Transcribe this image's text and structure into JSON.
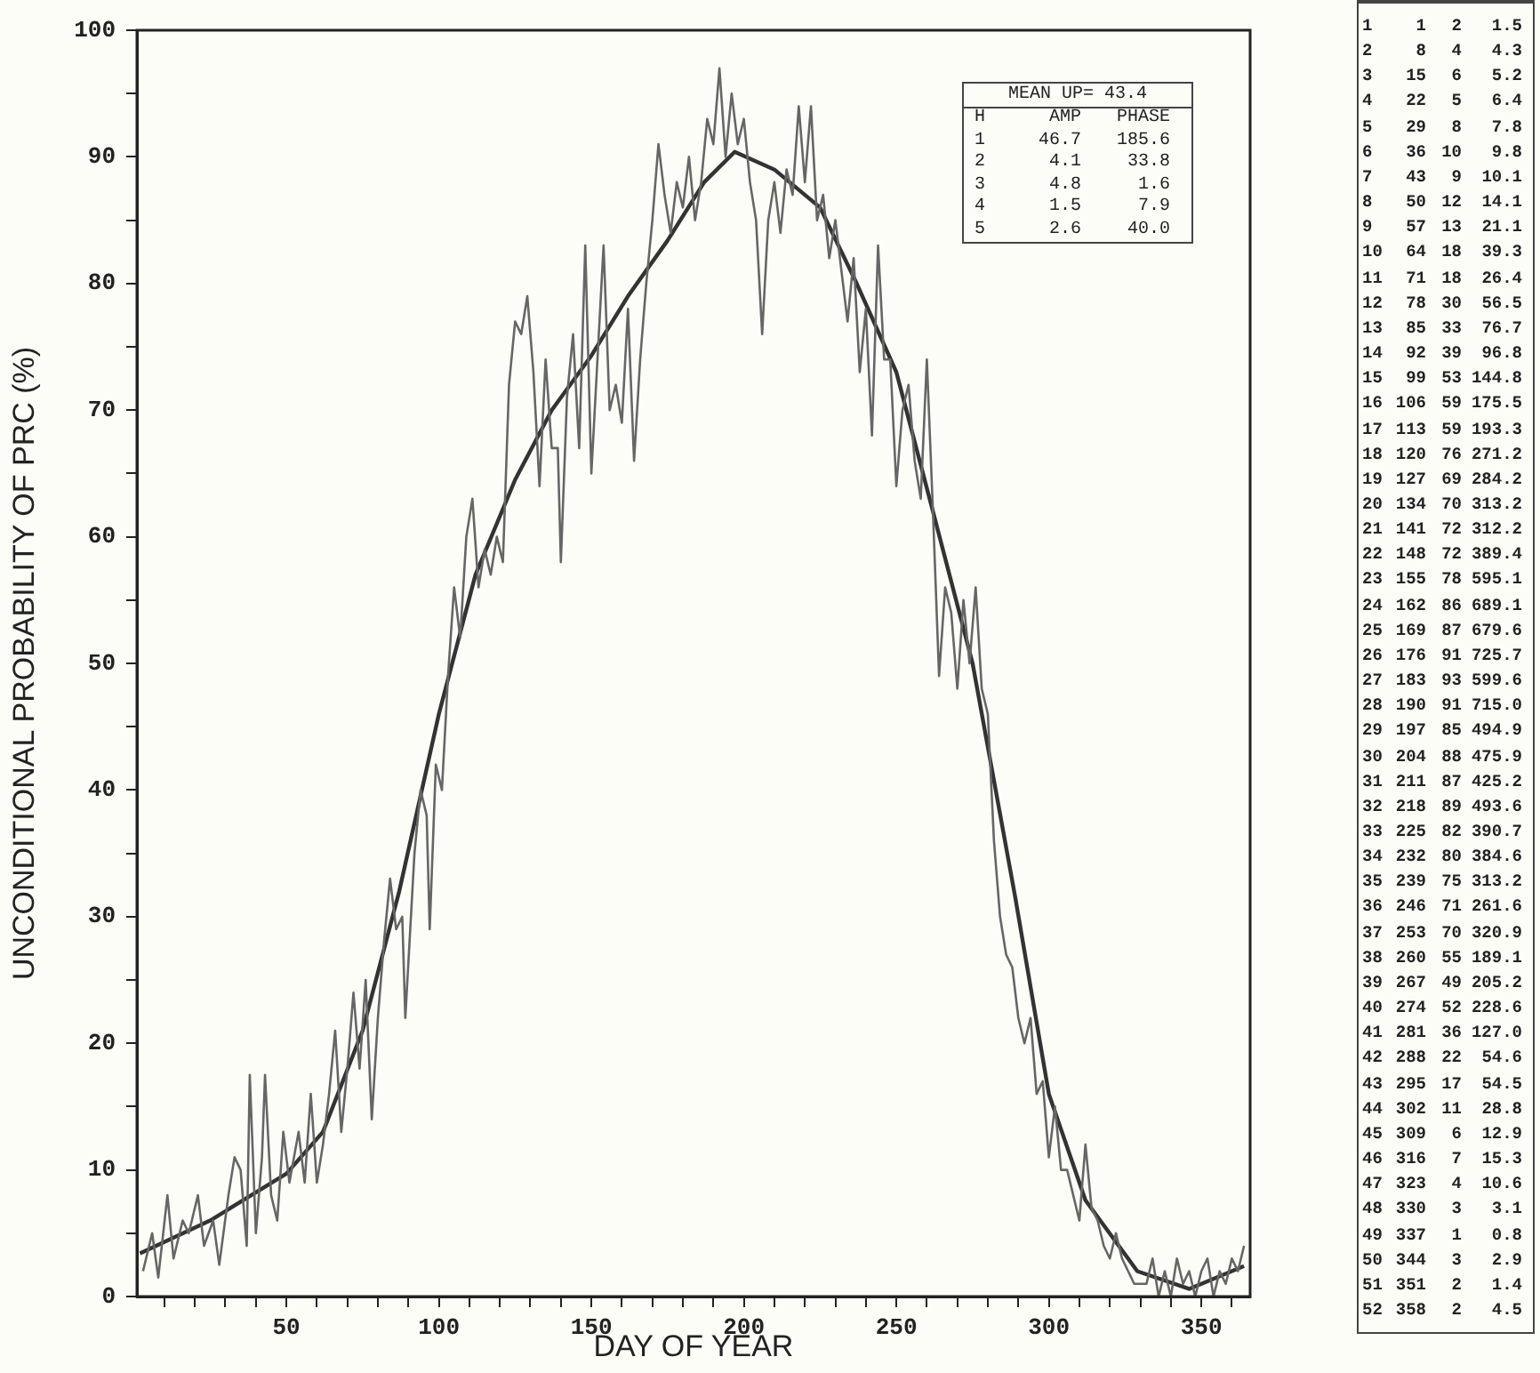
{
  "chart_data": [
    {
      "type": "line",
      "xlabel": "DAY OF YEAR",
      "ylabel": "UNCONDITIONAL PROBABILITY OF PRC (%)",
      "xlim": [
        1,
        366
      ],
      "ylim": [
        0,
        100
      ],
      "xticks": [
        {
          "value": 10,
          "label": null
        },
        {
          "value": 20,
          "label": null
        },
        {
          "value": 30,
          "label": null
        },
        {
          "value": 40,
          "label": null
        },
        50,
        {
          "value": 60,
          "label": null
        },
        {
          "value": 70,
          "label": null
        },
        {
          "value": 80,
          "label": null
        },
        {
          "value": 90,
          "label": null
        },
        100,
        {
          "value": 110,
          "label": null
        },
        {
          "value": 120,
          "label": null
        },
        {
          "value": 130,
          "label": null
        },
        {
          "value": 140,
          "label": null
        },
        150,
        {
          "value": 160,
          "label": null
        },
        {
          "value": 170,
          "label": null
        },
        {
          "value": 180,
          "label": null
        },
        {
          "value": 190,
          "label": null
        },
        200,
        {
          "value": 210,
          "label": null
        },
        {
          "value": 220,
          "label": null
        },
        {
          "value": 230,
          "label": null
        },
        {
          "value": 240,
          "label": null
        },
        250,
        {
          "value": 260,
          "label": null
        },
        {
          "value": 270,
          "label": null
        },
        {
          "value": 280,
          "label": null
        },
        {
          "value": 290,
          "label": null
        },
        300,
        {
          "value": 310,
          "label": null
        },
        {
          "value": 320,
          "label": null
        },
        {
          "value": 330,
          "label": null
        },
        {
          "value": 340,
          "label": null
        },
        350,
        {
          "value": 360,
          "label": null
        }
      ],
      "yticks": [
        0,
        {
          "value": 5,
          "label": null
        },
        10,
        {
          "value": 15,
          "label": null
        },
        20,
        {
          "value": 25,
          "label": null
        },
        30,
        {
          "value": 35,
          "label": null
        },
        40,
        {
          "value": 45,
          "label": null
        },
        50,
        {
          "value": 55,
          "label": null
        },
        60,
        {
          "value": 65,
          "label": null
        },
        70,
        {
          "value": 75,
          "label": null
        },
        80,
        {
          "value": 85,
          "label": null
        },
        90,
        {
          "value": 95,
          "label": null
        },
        100
      ],
      "grid": false,
      "legend": false,
      "marker": "none",
      "line_style": "solid",
      "series": [
        {
          "color": "#666666",
          "x": [
            3,
            6,
            8,
            11,
            13,
            16,
            18,
            21,
            23,
            26,
            28,
            31,
            33,
            35,
            37,
            38,
            40,
            42,
            43,
            45,
            47,
            49,
            51,
            54,
            56,
            58,
            60,
            62,
            64,
            66,
            68,
            70,
            72,
            74,
            76,
            78,
            80,
            82,
            84,
            86,
            88,
            89,
            92,
            94,
            96,
            97,
            99,
            101,
            103,
            105,
            107,
            109,
            111,
            113,
            115,
            117,
            119,
            121,
            123,
            125,
            127,
            129,
            131,
            133,
            135,
            137,
            139,
            140,
            142,
            144,
            146,
            148,
            150,
            152,
            154,
            156,
            158,
            160,
            162,
            164,
            166,
            168,
            170,
            172,
            174,
            176,
            178,
            180,
            182,
            184,
            186,
            188,
            190,
            192,
            194,
            196,
            198,
            200,
            202,
            204,
            206,
            208,
            210,
            212,
            214,
            216,
            218,
            220,
            222,
            224,
            226,
            228,
            230,
            232,
            234,
            236,
            238,
            240,
            242,
            244,
            246,
            248,
            250,
            252,
            254,
            256,
            258,
            260,
            262,
            264,
            266,
            268,
            270,
            272,
            274,
            276,
            278,
            280,
            282,
            284,
            286,
            288,
            290,
            292,
            294,
            296,
            298,
            300,
            302,
            304,
            306,
            308,
            310,
            312,
            314,
            316,
            318,
            320,
            322,
            324,
            326,
            328,
            330,
            332,
            334,
            336,
            338,
            340,
            342,
            344,
            346,
            348,
            350,
            352,
            354,
            356,
            358,
            360,
            362,
            364
          ],
          "values": [
            2,
            5,
            1.5,
            8,
            3,
            6,
            5,
            8,
            4,
            6,
            2.5,
            8,
            11,
            10,
            4,
            17.5,
            5,
            11,
            17.5,
            8,
            6,
            13,
            9,
            13,
            9,
            16,
            9,
            12,
            16,
            21,
            13,
            18,
            24,
            18,
            25,
            14,
            22,
            28,
            33,
            29,
            30,
            22,
            35,
            40,
            38,
            29,
            42,
            40,
            49,
            56,
            52,
            60,
            63,
            56,
            59,
            57,
            60,
            58,
            72,
            77,
            76,
            79,
            73,
            64,
            74,
            67,
            67,
            58,
            71,
            76,
            67,
            83,
            65,
            74,
            83,
            70,
            72,
            69,
            78,
            66,
            74,
            80,
            85,
            91,
            87,
            84,
            88,
            86,
            90,
            85,
            88,
            93,
            91,
            97,
            90,
            95,
            91,
            93,
            88,
            85,
            76,
            85,
            88,
            84,
            89,
            87,
            94,
            88,
            94,
            85,
            87,
            82,
            85,
            81,
            77,
            82,
            73,
            78,
            68,
            83,
            74,
            74,
            64,
            70,
            72,
            66,
            63,
            74,
            62,
            49,
            56,
            54,
            48,
            55,
            50,
            56,
            48,
            46,
            36,
            30,
            27,
            26,
            22,
            20,
            22,
            16,
            17,
            11,
            15,
            10,
            10,
            8,
            6,
            12,
            7,
            6,
            4,
            3,
            5,
            3,
            2,
            1,
            1,
            1,
            3,
            0,
            2,
            0,
            3,
            1,
            2,
            0,
            2,
            3,
            0,
            2,
            1,
            3,
            2,
            4
          ]
        },
        {
          "color": "#333333",
          "x": [
            2,
            25,
            50,
            62,
            75,
            87,
            100,
            112,
            125,
            137,
            150,
            162,
            175,
            187,
            197,
            210,
            225,
            237,
            250,
            262,
            275,
            289,
            300,
            312,
            329,
            346,
            364
          ],
          "values": [
            3.4,
            6,
            9.7,
            13,
            21,
            32,
            46,
            57,
            64.5,
            70,
            74.3,
            79,
            83.4,
            88,
            90.4,
            89,
            86,
            80,
            73,
            62,
            50,
            31.5,
            16,
            7.6,
            2,
            0.6,
            2.4
          ]
        }
      ],
      "annotations": [
        "MEAN UP= 43.4",
        "H AMP PHASE",
        "1 46.7 185.6",
        "2 4.1 33.8",
        "3 4.8 1.6",
        "4 1.5 7.9",
        "5 2.6 40.0"
      ]
    },
    {
      "type": "other",
      "annotations": [
        "1 1 2 1.5",
        "2 8 4 4.3",
        "3 15 6 5.2",
        "4 22 5 6.4",
        "5 29 8 7.8",
        "6 36 10 9.8",
        "7 43 9 10.1",
        "8 50 12 14.1",
        "9 57 13 21.1",
        "10 64 18 39.3",
        "11 71 18 26.4",
        "12 78 30 56.5",
        "13 85 33 76.7",
        "14 92 39 96.8",
        "15 99 53 144.8",
        "16 106 59 175.5",
        "17 113 59 193.3",
        "18 120 76 271.2",
        "19 127 69 284.2",
        "20 134 70 313.2",
        "21 141 72 312.2",
        "22 148 72 389.4",
        "23 155 78 595.1",
        "24 162 86 689.1",
        "25 169 87 679.6",
        "26 176 91 725.7",
        "27 183 93 599.6",
        "28 190 91 715.0",
        "29 197 85 494.9",
        "30 204 88 475.9",
        "31 211 87 425.2",
        "32 218 89 493.6",
        "33 225 82 390.7",
        "34 232 80 384.6",
        "35 239 75 313.2",
        "36 246 71 261.6",
        "37 253 70 320.9",
        "38 260 55 189.1",
        "39 267 49 205.2",
        "40 274 52 228.6",
        "41 281 36 127.0",
        "42 288 22 54.6",
        "43 295 17 54.5",
        "44 302 11 28.8",
        "45 309 6 12.9",
        "46 316 7 15.3",
        "47 323 4 10.6",
        "48 330 3 3.1",
        "49 337 1 0.8",
        "50 344 3 2.9",
        "51 351 2 1.4",
        "52 358 2 4.5"
      ]
    }
  ]
}
